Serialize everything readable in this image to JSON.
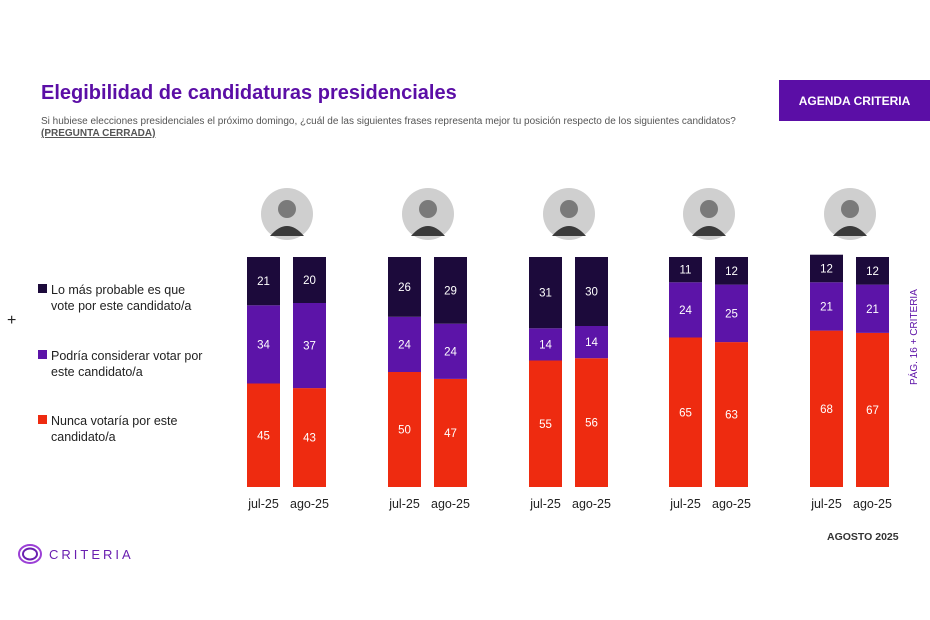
{
  "header": {
    "title": "Elegibilidad de candidaturas presidenciales",
    "subtitle": "Si hubiese elecciones presidenciales el próximo domingo, ¿cuál de las siguientes frases representa mejor tu posición respecto de los siguientes candidatos?",
    "subtitle_tag": "(PREGUNTA CERRADA)",
    "badge": "AGENDA CRITERIA"
  },
  "legend": {
    "items": [
      {
        "line1": "Lo más probable es que",
        "line2": "vote por este candidato/a",
        "color": "#1c0a3b"
      },
      {
        "line1": "Podría considerar votar por",
        "line2": "este candidato/a",
        "color": "#5c14a8"
      },
      {
        "line1": "Nunca votaría por este",
        "line2": "candidato/a",
        "color": "#ee2b10"
      }
    ]
  },
  "side": {
    "text": "PÁG. 16  +  CRITERIA"
  },
  "footer": {
    "date": "AGOSTO 2025",
    "logo": "CRITERIA"
  },
  "colors": {
    "accent": "#5b0ea6",
    "bottom": "#ee2b10",
    "middle": "#5c14a8",
    "top": "#1c0a3b"
  },
  "chart_data": {
    "type": "bar",
    "stacked": true,
    "categories": [
      "jul-25",
      "ago-25"
    ],
    "series_names": [
      "Nunca votaría por este candidato/a",
      "Podría considerar votar por este candidato/a",
      "Lo más probable es que vote por este candidato/a"
    ],
    "groups": [
      {
        "labels": [
          "jul-25",
          "ago-25"
        ],
        "nunca": [
          45,
          43
        ],
        "podria": [
          34,
          37
        ],
        "probable": [
          21,
          20
        ]
      },
      {
        "labels": [
          "jul-25",
          "ago-25"
        ],
        "nunca": [
          50,
          47
        ],
        "podria": [
          24,
          24
        ],
        "probable": [
          26,
          29
        ]
      },
      {
        "labels": [
          "jul-25",
          "ago-25"
        ],
        "nunca": [
          55,
          56
        ],
        "podria": [
          14,
          14
        ],
        "probable": [
          31,
          30
        ]
      },
      {
        "labels": [
          "jul-25",
          "ago-25"
        ],
        "nunca": [
          65,
          63
        ],
        "podria": [
          24,
          25
        ],
        "probable": [
          11,
          12
        ]
      },
      {
        "labels": [
          "jul-25",
          "ago-25"
        ],
        "nunca": [
          68,
          67
        ],
        "podria": [
          21,
          21
        ],
        "probable": [
          12,
          12
        ]
      }
    ],
    "ylim": [
      0,
      100
    ]
  }
}
